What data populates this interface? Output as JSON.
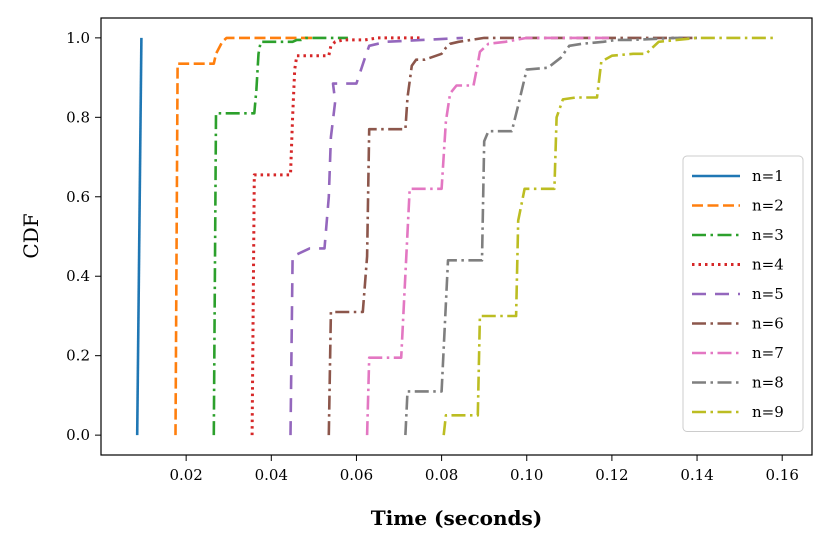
{
  "chart_data": {
    "type": "line",
    "title": "",
    "xlabel": "Time (seconds)",
    "ylabel": "CDF",
    "xlim": [
      0.0,
      0.167
    ],
    "ylim": [
      -0.05,
      1.05
    ],
    "xticks": [
      0.02,
      0.04,
      0.06,
      0.08,
      0.1,
      0.12,
      0.14,
      0.16
    ],
    "xtick_labels": [
      "0.02",
      "0.04",
      "0.06",
      "0.08",
      "0.10",
      "0.12",
      "0.14",
      "0.16"
    ],
    "yticks": [
      0.0,
      0.2,
      0.4,
      0.6,
      0.8,
      1.0
    ],
    "ytick_labels": [
      "0.0",
      "0.2",
      "0.4",
      "0.6",
      "0.8",
      "1.0"
    ],
    "grid": false,
    "legend_position": "bottom-right",
    "series": [
      {
        "name": "n=1",
        "color": "#1f77b4",
        "dash": "solid",
        "x": [
          0.0085,
          0.0095
        ],
        "y": [
          0.0,
          1.0
        ]
      },
      {
        "name": "n=2",
        "color": "#ff7f0e",
        "dash": "dashed",
        "x": [
          0.0175,
          0.018,
          0.0265,
          0.027,
          0.0285,
          0.0295,
          0.0335,
          0.034,
          0.05
        ],
        "y": [
          0.0,
          0.935,
          0.935,
          0.96,
          0.99,
          1.0,
          1.0,
          1.0,
          1.0
        ]
      },
      {
        "name": "n=3",
        "color": "#2ca02c",
        "dash": "dashdot",
        "x": [
          0.0265,
          0.027,
          0.036,
          0.0365,
          0.037,
          0.0375,
          0.045,
          0.046,
          0.047,
          0.048,
          0.058
        ],
        "y": [
          0.0,
          0.81,
          0.81,
          0.87,
          0.96,
          0.99,
          0.99,
          0.995,
          0.995,
          1.0,
          1.0
        ]
      },
      {
        "name": "n=4",
        "color": "#d62728",
        "dash": "dotted",
        "x": [
          0.0355,
          0.036,
          0.0445,
          0.045,
          0.0455,
          0.046,
          0.0535,
          0.054,
          0.055,
          0.057,
          0.062,
          0.065,
          0.075
        ],
        "y": [
          0.0,
          0.655,
          0.655,
          0.8,
          0.92,
          0.955,
          0.955,
          0.98,
          0.99,
          0.995,
          0.995,
          1.0,
          1.0
        ]
      },
      {
        "name": "n=5",
        "color": "#9467bd",
        "dash": "loosedash",
        "x": [
          0.0445,
          0.045,
          0.049,
          0.05,
          0.0525,
          0.0535,
          0.054,
          0.055,
          0.0545,
          0.06,
          0.062,
          0.063,
          0.065,
          0.067,
          0.085
        ],
        "y": [
          0.0,
          0.45,
          0.47,
          0.47,
          0.47,
          0.6,
          0.75,
          0.84,
          0.885,
          0.885,
          0.95,
          0.98,
          0.985,
          0.99,
          1.0
        ]
      },
      {
        "name": "n=6",
        "color": "#8c564b",
        "dash": "dashdot",
        "x": [
          0.0535,
          0.054,
          0.058,
          0.0615,
          0.0625,
          0.063,
          0.0655,
          0.0715,
          0.072,
          0.073,
          0.074,
          0.076,
          0.08,
          0.081,
          0.082,
          0.084,
          0.09,
          0.14
        ],
        "y": [
          0.0,
          0.31,
          0.31,
          0.31,
          0.45,
          0.77,
          0.77,
          0.77,
          0.85,
          0.93,
          0.945,
          0.945,
          0.96,
          0.975,
          0.985,
          0.99,
          1.0,
          1.0
        ]
      },
      {
        "name": "n=7",
        "color": "#e377c2",
        "dash": "dashdot",
        "x": [
          0.0625,
          0.063,
          0.0705,
          0.071,
          0.0725,
          0.078,
          0.08,
          0.081,
          0.082,
          0.0835,
          0.0875,
          0.0885,
          0.089,
          0.091,
          0.095,
          0.1,
          0.12
        ],
        "y": [
          0.0,
          0.195,
          0.195,
          0.3,
          0.62,
          0.62,
          0.62,
          0.79,
          0.86,
          0.88,
          0.88,
          0.935,
          0.965,
          0.985,
          0.99,
          1.0,
          1.0
        ]
      },
      {
        "name": "n=8",
        "color": "#7f7f7f",
        "dash": "dashdot",
        "x": [
          0.0715,
          0.072,
          0.0795,
          0.08,
          0.0815,
          0.085,
          0.0875,
          0.0895,
          0.09,
          0.091,
          0.094,
          0.0965,
          0.098,
          0.1,
          0.105,
          0.108,
          0.11,
          0.113,
          0.118,
          0.121,
          0.125,
          0.135,
          0.14
        ],
        "y": [
          0.0,
          0.11,
          0.11,
          0.11,
          0.44,
          0.44,
          0.44,
          0.44,
          0.74,
          0.765,
          0.765,
          0.765,
          0.83,
          0.92,
          0.925,
          0.95,
          0.98,
          0.985,
          0.99,
          0.995,
          0.995,
          1.0,
          1.0
        ]
      },
      {
        "name": "n=9",
        "color": "#bcbd22",
        "dash": "dashdot",
        "x": [
          0.0805,
          0.081,
          0.085,
          0.0885,
          0.089,
          0.0905,
          0.0935,
          0.0975,
          0.098,
          0.0995,
          0.102,
          0.1065,
          0.107,
          0.1085,
          0.1115,
          0.1165,
          0.1175,
          0.12,
          0.125,
          0.128,
          0.131,
          0.14,
          0.158
        ],
        "y": [
          0.0,
          0.05,
          0.05,
          0.05,
          0.3,
          0.3,
          0.3,
          0.3,
          0.54,
          0.62,
          0.62,
          0.62,
          0.8,
          0.845,
          0.85,
          0.85,
          0.94,
          0.955,
          0.96,
          0.96,
          0.99,
          1.0,
          1.0
        ]
      }
    ]
  }
}
